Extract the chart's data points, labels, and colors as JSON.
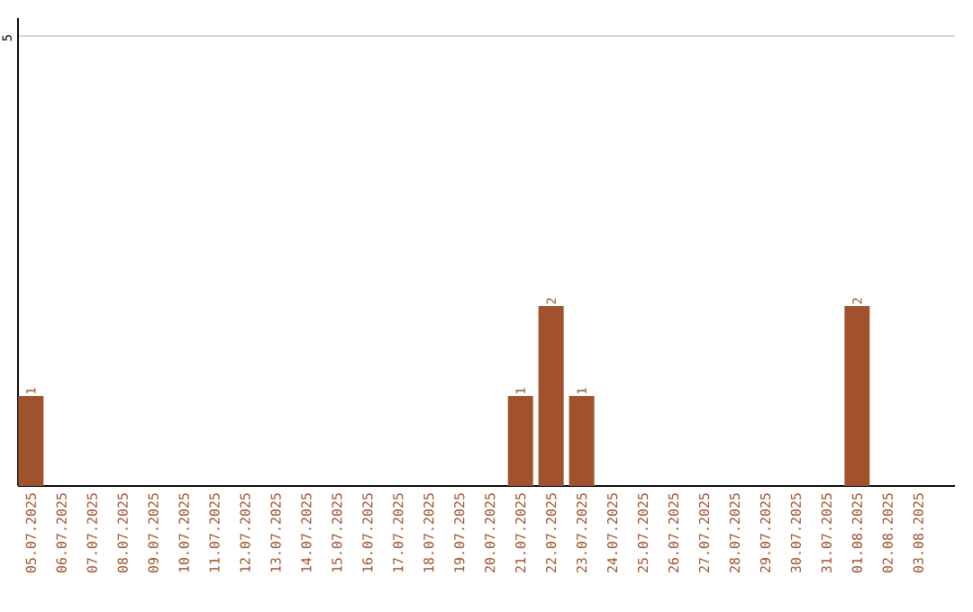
{
  "chart_data": {
    "type": "bar",
    "categories": [
      "05.07.2025",
      "06.07.2025",
      "07.07.2025",
      "08.07.2025",
      "09.07.2025",
      "10.07.2025",
      "11.07.2025",
      "12.07.2025",
      "13.07.2025",
      "14.07.2025",
      "15.07.2025",
      "16.07.2025",
      "17.07.2025",
      "18.07.2025",
      "19.07.2025",
      "20.07.2025",
      "21.07.2025",
      "22.07.2025",
      "23.07.2025",
      "24.07.2025",
      "25.07.2025",
      "26.07.2025",
      "27.07.2025",
      "28.07.2025",
      "29.07.2025",
      "30.07.2025",
      "31.07.2025",
      "01.08.2025",
      "02.08.2025",
      "03.08.2025"
    ],
    "values": [
      1,
      0,
      0,
      0,
      0,
      0,
      0,
      0,
      0,
      0,
      0,
      0,
      0,
      0,
      0,
      0,
      1,
      2,
      1,
      0,
      0,
      0,
      0,
      0,
      0,
      0,
      0,
      2,
      0,
      0
    ],
    "value_labels": [
      "1",
      null,
      null,
      null,
      null,
      null,
      null,
      null,
      null,
      null,
      null,
      null,
      null,
      null,
      null,
      null,
      "1",
      "2",
      "1",
      null,
      null,
      null,
      null,
      null,
      null,
      null,
      null,
      "2",
      null,
      null
    ],
    "color": "#a0522d",
    "ylim": [
      0,
      5.2
    ],
    "yticks": [
      5
    ],
    "grid": "y"
  }
}
